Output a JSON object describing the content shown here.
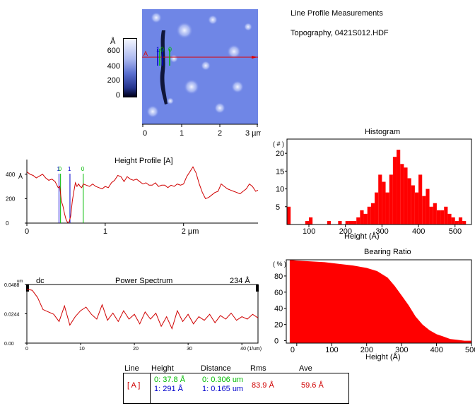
{
  "header": {
    "title": "Line Profile Measurements",
    "subtitle": "Topography,  0421S012.HDF"
  },
  "image_panel": {
    "colorbar": {
      "unit": "Å",
      "ticks": [
        "600",
        "400",
        "200",
        "0"
      ]
    },
    "x_ticks": [
      "0",
      "1",
      "2",
      "3 µm"
    ],
    "markers": [
      "A",
      "1",
      "0",
      "0"
    ]
  },
  "chart_data": [
    {
      "type": "line",
      "title": "Height Profile [A]",
      "ylabel": "Å",
      "x_ticks": [
        "0",
        "1",
        "2 µm"
      ],
      "y_ticks": [
        "400",
        "200",
        "0"
      ],
      "xlim": [
        0,
        2.95
      ],
      "ylim": [
        0,
        520
      ],
      "cursor_labels": [
        "1",
        "0",
        "1",
        "0"
      ],
      "cursors": [
        {
          "label": "1",
          "x": 0.41,
          "color": "#0000cc"
        },
        {
          "label": "0",
          "x": 0.43,
          "color": "#00bb00"
        },
        {
          "label": "1",
          "x": 0.55,
          "color": "#0000cc"
        },
        {
          "label": "0",
          "x": 0.72,
          "color": "#00bb00"
        }
      ],
      "x": [
        0,
        0.04,
        0.08,
        0.12,
        0.16,
        0.2,
        0.24,
        0.28,
        0.32,
        0.36,
        0.4,
        0.42,
        0.44,
        0.46,
        0.48,
        0.5,
        0.52,
        0.54,
        0.56,
        0.58,
        0.6,
        0.62,
        0.64,
        0.66,
        0.68,
        0.7,
        0.72,
        0.76,
        0.8,
        0.84,
        0.88,
        0.92,
        0.96,
        1.0,
        1.04,
        1.08,
        1.12,
        1.16,
        1.2,
        1.24,
        1.28,
        1.32,
        1.36,
        1.4,
        1.44,
        1.48,
        1.52,
        1.56,
        1.6,
        1.64,
        1.68,
        1.72,
        1.76,
        1.8,
        1.84,
        1.88,
        1.92,
        1.96,
        2.0,
        2.04,
        2.08,
        2.12,
        2.16,
        2.2,
        2.24,
        2.28,
        2.32,
        2.36,
        2.4,
        2.44,
        2.48,
        2.52,
        2.56,
        2.6,
        2.64,
        2.68,
        2.72,
        2.76,
        2.8,
        2.84,
        2.88,
        2.92,
        2.95
      ],
      "values": [
        420,
        400,
        390,
        370,
        385,
        400,
        370,
        350,
        360,
        340,
        290,
        300,
        180,
        140,
        80,
        30,
        5,
        10,
        60,
        180,
        260,
        330,
        300,
        320,
        300,
        290,
        320,
        310,
        300,
        320,
        300,
        290,
        280,
        300,
        290,
        330,
        350,
        390,
        380,
        340,
        380,
        360,
        350,
        360,
        340,
        320,
        330,
        310,
        310,
        330,
        300,
        310,
        310,
        290,
        310,
        300,
        320,
        310,
        320,
        380,
        420,
        460,
        410,
        320,
        250,
        200,
        210,
        230,
        250,
        260,
        320,
        300,
        280,
        270,
        260,
        250,
        240,
        260,
        280,
        320,
        300,
        260,
        270
      ],
      "color": "#d00000"
    },
    {
      "type": "line",
      "title": "Power Spectrum",
      "annotation": "234 Å",
      "dc_label": "dc",
      "y_unit": "um",
      "x_ticks": [
        "0",
        "10",
        "20",
        "30",
        "40 (1/um)"
      ],
      "y_ticks": [
        "0.0488",
        "0.0244",
        "0.00"
      ],
      "xlim": [
        0,
        43
      ],
      "ylim": [
        0,
        0.0488
      ],
      "x": [
        0,
        1,
        2,
        3,
        4,
        5,
        6,
        7,
        8,
        9,
        10,
        11,
        12,
        13,
        14,
        15,
        16,
        17,
        18,
        19,
        20,
        21,
        22,
        23,
        24,
        25,
        26,
        27,
        28,
        29,
        30,
        31,
        32,
        33,
        34,
        35,
        36,
        37,
        38,
        39,
        40,
        41,
        42,
        43
      ],
      "values": [
        0.045,
        0.044,
        0.038,
        0.028,
        0.026,
        0.024,
        0.018,
        0.031,
        0.015,
        0.022,
        0.027,
        0.03,
        0.024,
        0.02,
        0.032,
        0.019,
        0.025,
        0.018,
        0.027,
        0.02,
        0.024,
        0.016,
        0.026,
        0.02,
        0.025,
        0.014,
        0.022,
        0.012,
        0.027,
        0.018,
        0.024,
        0.016,
        0.022,
        0.019,
        0.024,
        0.017,
        0.023,
        0.02,
        0.025,
        0.019,
        0.022,
        0.02,
        0.024,
        0.021
      ],
      "color": "#d00000"
    },
    {
      "type": "bar",
      "title": "Histogram",
      "ylabel": "( # )",
      "xlabel": "Height (Å)",
      "x_ticks": [
        "100",
        "200",
        "300",
        "400",
        "500"
      ],
      "y_ticks": [
        "20",
        "15",
        "10",
        "5"
      ],
      "xlim": [
        40,
        545
      ],
      "ylim": [
        0,
        24
      ],
      "bin_width": 10,
      "bin_starts": [
        40,
        50,
        60,
        70,
        80,
        90,
        100,
        110,
        120,
        130,
        140,
        150,
        160,
        170,
        180,
        190,
        200,
        210,
        220,
        230,
        240,
        250,
        260,
        270,
        280,
        290,
        300,
        310,
        320,
        330,
        340,
        350,
        360,
        370,
        380,
        390,
        400,
        410,
        420,
        430,
        440,
        450,
        460,
        470,
        480,
        490,
        500,
        510,
        520
      ],
      "values": [
        5,
        0,
        0,
        0,
        0,
        1,
        2,
        0,
        0,
        0,
        0,
        1,
        0,
        0,
        1,
        0,
        1,
        1,
        1,
        2,
        4,
        3,
        5,
        6,
        9,
        14,
        12,
        9,
        14,
        19,
        21,
        17,
        16,
        13,
        11,
        9,
        14,
        8,
        10,
        5,
        6,
        4,
        4,
        5,
        3,
        2,
        1,
        2,
        1
      ],
      "color": "#ff0000"
    },
    {
      "type": "area",
      "title": "Bearing Ratio",
      "ylabel": "( % )",
      "xlabel": "Height (Å)",
      "x_ticks": [
        "0",
        "100",
        "200",
        "300",
        "400",
        "500"
      ],
      "y_ticks": [
        "80",
        "60",
        "40",
        "20",
        "0"
      ],
      "xlim": [
        -30,
        500
      ],
      "ylim": [
        -3,
        100
      ],
      "x": [
        -20,
        0,
        40,
        80,
        120,
        160,
        200,
        230,
        260,
        280,
        300,
        320,
        340,
        360,
        380,
        400,
        420,
        440,
        460,
        480,
        500
      ],
      "values": [
        100,
        99,
        98,
        97,
        95,
        93,
        90,
        86,
        78,
        68,
        56,
        44,
        30,
        20,
        13,
        8,
        5,
        2,
        1,
        0,
        0
      ],
      "color": "#ff0000"
    }
  ],
  "measurements": {
    "headers": [
      "Line",
      "Height",
      "Distance",
      "Rms",
      "Ave"
    ],
    "line": "[ A ]",
    "height": [
      "0:  37.8 Å",
      "1:  291 Å"
    ],
    "distance": [
      "0:  0.306 um",
      "1:  0.165 um"
    ],
    "rms": "83.9 Å",
    "ave": "59.6 Å"
  },
  "colors": {
    "profile": "#d00000",
    "fill": "#ff0000",
    "cursor_blue": "#0000cc",
    "cursor_green": "#00bb00"
  }
}
